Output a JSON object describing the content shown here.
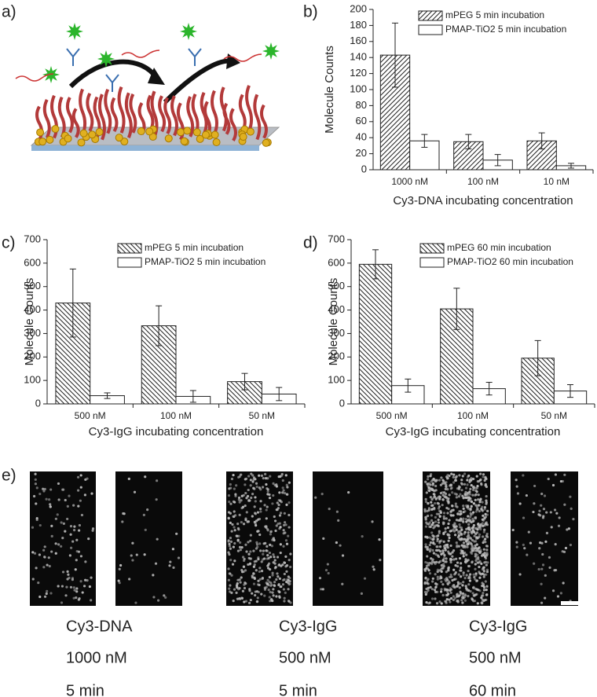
{
  "panel_labels": [
    "a)",
    "b)",
    "c)",
    "d)",
    "e)"
  ],
  "chart_data": [
    {
      "type": "bar",
      "categories": [
        "1000 nM",
        "100 nM",
        "10 nM"
      ],
      "xlabel": "Cy3-DNA incubating concentration",
      "ylabel": "Molecule Counts",
      "ylim": [
        0,
        200
      ],
      "yticks": [
        0,
        20,
        40,
        60,
        80,
        100,
        120,
        140,
        160,
        180,
        200
      ],
      "series": [
        {
          "name": "mPEG 5 min incubation",
          "color": "#ffffff",
          "hatch": "/",
          "values": [
            143,
            35,
            36
          ],
          "errors": [
            40,
            9,
            10
          ]
        },
        {
          "name": "PMAP-TiO2 5 min incubation",
          "color": "#ffffff",
          "values": [
            36,
            12,
            5
          ],
          "errors": [
            8,
            7,
            3
          ]
        }
      ]
    },
    {
      "type": "bar",
      "categories": [
        "500 nM",
        "100 nM",
        "50 nM"
      ],
      "xlabel": "Cy3-IgG incubating concentration",
      "ylabel": "Molecule Counts",
      "ylim": [
        0,
        700
      ],
      "yticks": [
        0,
        100,
        200,
        300,
        400,
        500,
        600,
        700
      ],
      "series": [
        {
          "name": "mPEG 5 min incubation",
          "color": "#ffffff",
          "hatch": "\\",
          "values": [
            430,
            333,
            95
          ],
          "errors": [
            145,
            85,
            35
          ]
        },
        {
          "name": "PMAP-TiO2 5 min incubation",
          "color": "#ffffff",
          "values": [
            35,
            32,
            42
          ],
          "errors": [
            12,
            25,
            28
          ]
        }
      ]
    },
    {
      "type": "bar",
      "categories": [
        "500 nM",
        "100 nM",
        "50 nM"
      ],
      "xlabel": "Cy3-IgG incubating concentration",
      "ylabel": "Molecule Counts",
      "ylim": [
        0,
        700
      ],
      "yticks": [
        0,
        100,
        200,
        300,
        400,
        500,
        600,
        700
      ],
      "series": [
        {
          "name": "mPEG 60 min incubation",
          "color": "#ffffff",
          "hatch": "\\",
          "values": [
            595,
            405,
            195
          ],
          "errors": [
            62,
            88,
            75
          ]
        },
        {
          "name": "PMAP-TiO2 60 min incubation",
          "color": "#ffffff",
          "values": [
            78,
            65,
            55
          ],
          "errors": [
            28,
            27,
            27
          ]
        }
      ]
    }
  ],
  "image_captions": [
    [
      "Cy3-DNA",
      "1000 nM",
      "5 min"
    ],
    [
      "Cy3-IgG",
      "500 nM",
      "5 min"
    ],
    [
      "Cy3-IgG",
      "500 nM",
      "60 min"
    ]
  ]
}
